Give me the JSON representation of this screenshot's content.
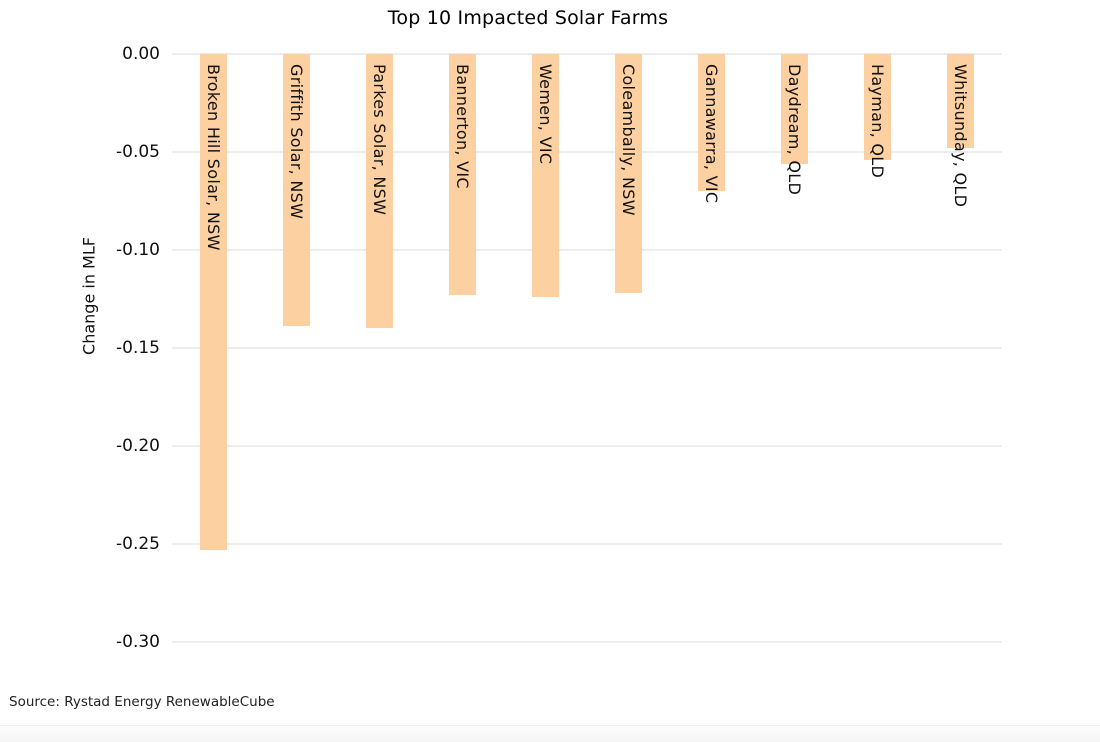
{
  "header": {
    "title": "Top 10 Impacted Solar Farms"
  },
  "footer": {
    "source": "Source: Rystad Energy RenewableCube"
  },
  "chart_data": {
    "type": "bar",
    "title": "Top 10 Impacted Solar Farms",
    "xlabel": "",
    "ylabel": "Change in MLF",
    "orientation": "vertical-negative",
    "categories": [
      "Broken Hill Solar, NSW",
      "Griffith Solar, NSW",
      "Parkes Solar, NSW",
      "Bannerton, VIC",
      "Wemen, VIC",
      "Coleambally, NSW",
      "Gannawarra, VIC",
      "Daydream, QLD",
      "Hayman, QLD",
      "Whitsunday, QLD"
    ],
    "values": [
      -0.253,
      -0.139,
      -0.14,
      -0.123,
      -0.124,
      -0.122,
      -0.07,
      -0.056,
      -0.054,
      -0.048
    ],
    "ylim": [
      -0.31,
      0.0
    ],
    "yticks": {
      "values": [
        0.0,
        -0.05,
        -0.1,
        -0.15,
        -0.2,
        -0.25,
        -0.3
      ],
      "labels": [
        "0.00",
        "-0.05",
        "-0.10",
        "-0.15",
        "-0.20",
        "-0.25",
        "-0.30"
      ]
    },
    "grid": true,
    "legend": "none",
    "bar_color": "#fdd0a2",
    "gridline_color": "#ececec",
    "text_color": "#111111",
    "category_label_position": "inside-top-rotated-90cw"
  }
}
